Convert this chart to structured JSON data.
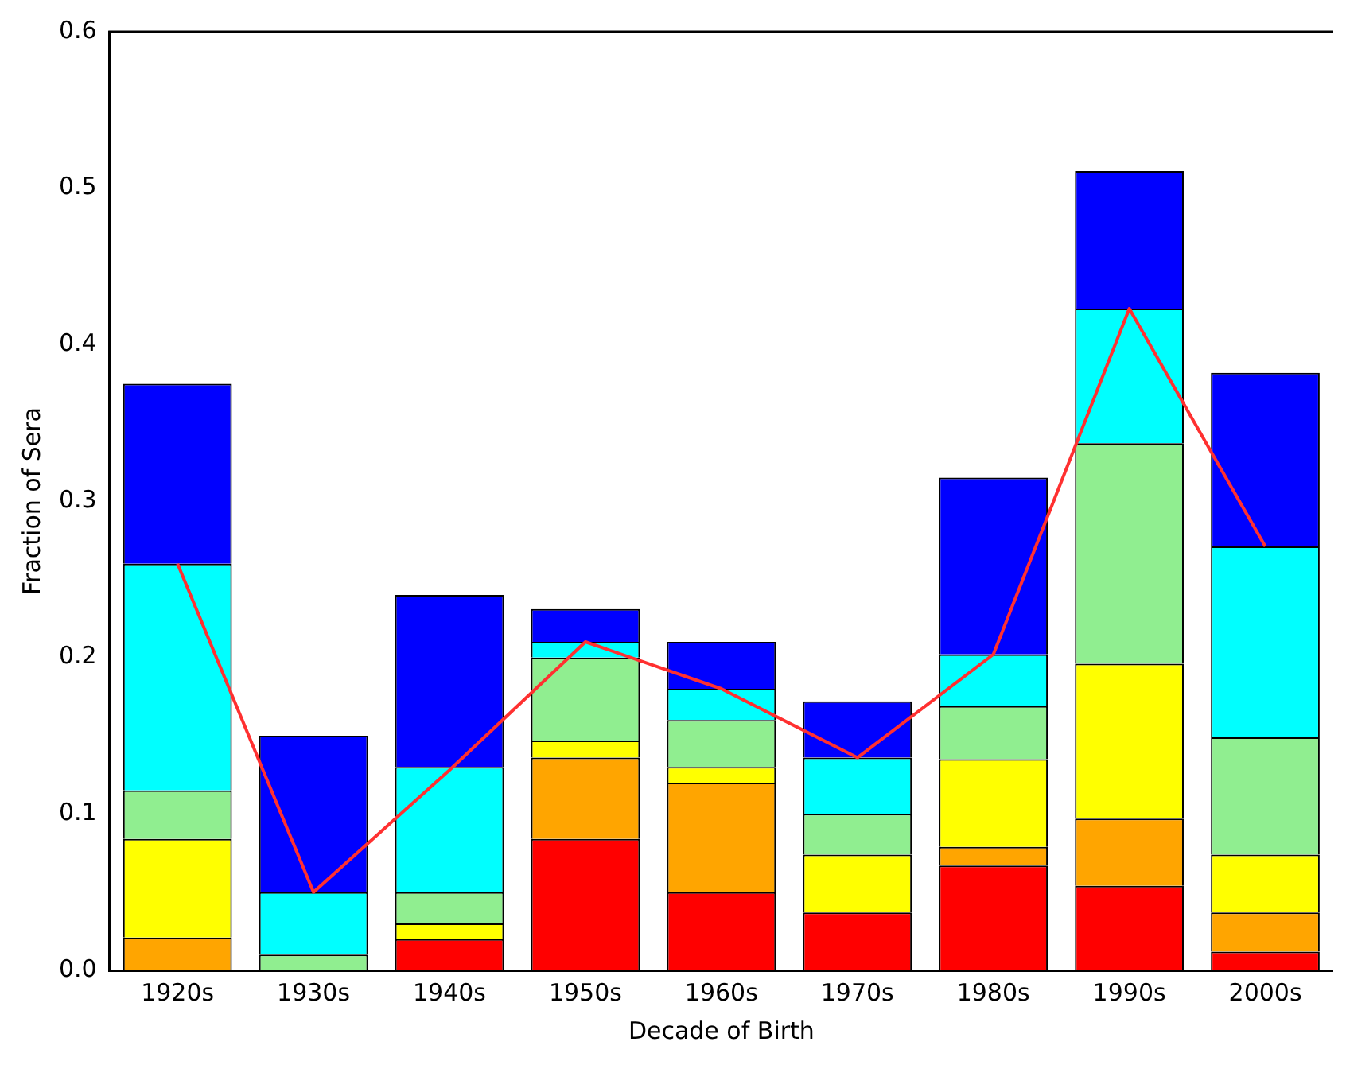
{
  "chart_data": {
    "type": "bar",
    "stacked": true,
    "xlabel": "Decade of Birth",
    "ylabel": "Fraction of Sera",
    "categories": [
      "1920s",
      "1930s",
      "1940s",
      "1950s",
      "1960s",
      "1970s",
      "1980s",
      "1990s",
      "2000s"
    ],
    "series": [
      {
        "color": "#ff0000",
        "values": [
          0,
          0,
          0.02,
          0.084,
          0.05,
          0.037,
          0.067,
          0.054,
          0.012
        ]
      },
      {
        "color": "#ffa500",
        "values": [
          0.021,
          0,
          0,
          0.052,
          0.07,
          0,
          0.012,
          0.043,
          0.025
        ]
      },
      {
        "color": "#ffff00",
        "values": [
          0.063,
          0,
          0.01,
          0.011,
          0.01,
          0.037,
          0.056,
          0.099,
          0.037
        ]
      },
      {
        "color": "#90ee90",
        "values": [
          0.031,
          0.01,
          0.02,
          0.053,
          0.03,
          0.026,
          0.034,
          0.141,
          0.075
        ]
      },
      {
        "color": "#00ffff",
        "values": [
          0.145,
          0.04,
          0.08,
          0.01,
          0.02,
          0.036,
          0.033,
          0.086,
          0.122
        ]
      },
      {
        "color": "#0000ff",
        "values": [
          0.115,
          0.1,
          0.11,
          0.021,
          0.03,
          0.036,
          0.113,
          0.088,
          0.111
        ]
      },
      {
        "type": "line",
        "color": "#ff3030",
        "values": [
          0.26,
          0.05,
          0.128,
          0.21,
          0.18,
          0.136,
          0.202,
          0.423,
          0.271
        ]
      }
    ],
    "ylim": [
      0,
      0.6
    ],
    "yticks": [
      {
        "value": 0,
        "label": "0.0"
      },
      0.1,
      0.2,
      0.3,
      0.4,
      0.5,
      0.6
    ],
    "grid": false,
    "legend": false,
    "marker": "none",
    "line_style": "solid"
  }
}
